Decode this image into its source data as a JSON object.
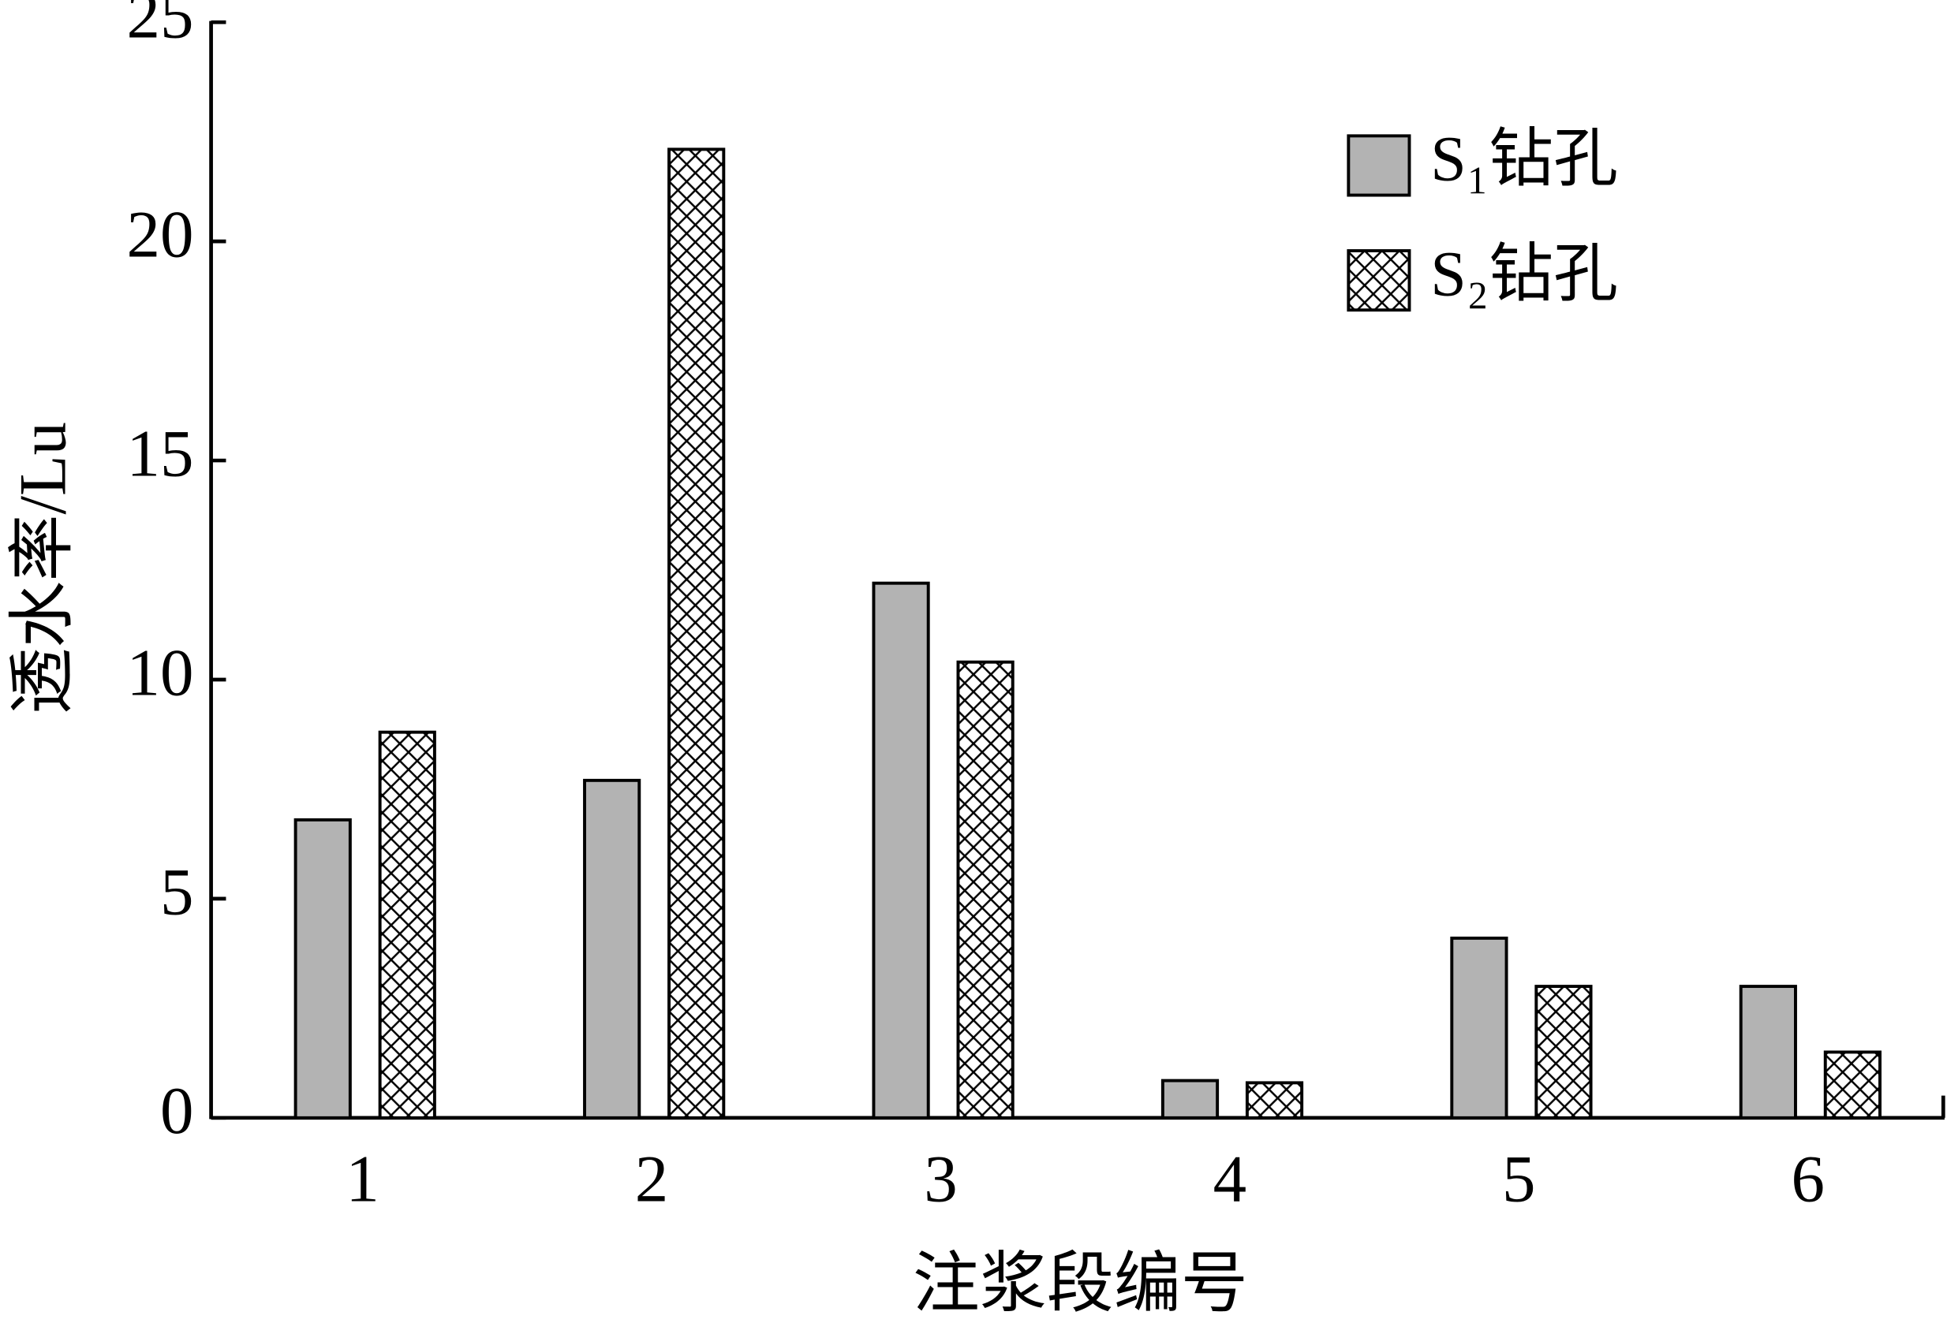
{
  "chart_data": {
    "type": "bar",
    "x_label": "注浆段编号",
    "y_label": "透水率/Lu",
    "categories": [
      "1",
      "2",
      "3",
      "4",
      "5",
      "6"
    ],
    "series": [
      {
        "name": "S₁钻孔",
        "color": "#b3b3b3",
        "pattern": "solid",
        "values": [
          6.8,
          7.7,
          12.2,
          0.85,
          4.1,
          3.0
        ]
      },
      {
        "name": "S₂钻孔",
        "color": "#ffffff",
        "pattern": "crosshatch",
        "values": [
          8.8,
          22.1,
          10.4,
          0.8,
          3.0,
          1.5
        ]
      }
    ],
    "ylim": [
      0,
      25
    ],
    "yticks": [
      0,
      5,
      10,
      15,
      20,
      25
    ],
    "grid": false,
    "legend": "upper right"
  }
}
